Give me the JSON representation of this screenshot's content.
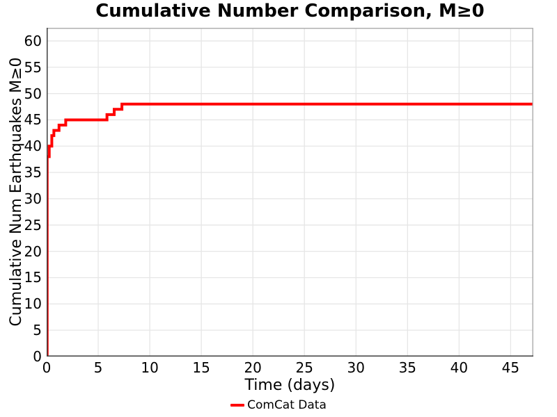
{
  "title": "Cumulative Number Comparison, M≥0",
  "axes": {
    "x_label": "Time (days)",
    "y_label": "Cumulative Num Earthquakes M≥0"
  },
  "legend": {
    "items": [
      {
        "label": "ComCat Data",
        "color": "#ff0000"
      }
    ]
  },
  "colors": {
    "line": "#ff0000",
    "grid": "#e6e6e6",
    "spine_light": "#b0b0b0",
    "spine_dark": "#3d3d3d",
    "text": "#000000",
    "background": "#ffffff"
  },
  "chart_data": {
    "type": "line",
    "subtype": "cumulative-step",
    "title": "Cumulative Number Comparison, M≥0",
    "xlabel": "Time (days)",
    "ylabel": "Cumulative Num Earthquakes M≥0",
    "xlim": [
      0,
      47.2
    ],
    "ylim": [
      0,
      62.5
    ],
    "xticks": [
      0,
      5,
      10,
      15,
      20,
      25,
      30,
      35,
      40,
      45
    ],
    "yticks": [
      0,
      5,
      10,
      15,
      20,
      25,
      30,
      35,
      40,
      45,
      50,
      55,
      60
    ],
    "grid": true,
    "legend_position": "bottom-center",
    "series": [
      {
        "name": "ComCat Data",
        "color": "#ff0000",
        "line_width": 4,
        "start": [
          0,
          0
        ],
        "step_events": [
          [
            0.05,
            38
          ],
          [
            0.25,
            40
          ],
          [
            0.5,
            42
          ],
          [
            0.7,
            43
          ],
          [
            1.2,
            44
          ],
          [
            1.85,
            45
          ],
          [
            5.85,
            46
          ],
          [
            6.55,
            47
          ],
          [
            7.3,
            48
          ]
        ],
        "end_x": 47.2,
        "final_value": 48
      }
    ]
  }
}
